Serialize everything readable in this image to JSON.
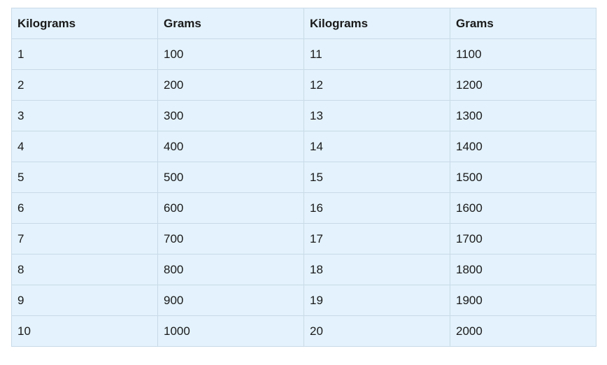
{
  "table": {
    "headers": [
      "Kilograms",
      "Grams",
      "Kilograms",
      "Grams"
    ],
    "rows": [
      [
        "1",
        "100",
        "11",
        "1100"
      ],
      [
        "2",
        "200",
        "12",
        "1200"
      ],
      [
        "3",
        "300",
        "13",
        "1300"
      ],
      [
        "4",
        "400",
        "14",
        "1400"
      ],
      [
        "5",
        "500",
        "15",
        "1500"
      ],
      [
        "6",
        "600",
        "16",
        "1600"
      ],
      [
        "7",
        "700",
        "17",
        "1700"
      ],
      [
        "8",
        "800",
        "18",
        "1800"
      ],
      [
        "9",
        "900",
        "19",
        "1900"
      ],
      [
        "10",
        "1000",
        "20",
        "2000"
      ]
    ]
  },
  "colors": {
    "cell_background": "#e3f2fc",
    "border": "#c9dbe8"
  }
}
